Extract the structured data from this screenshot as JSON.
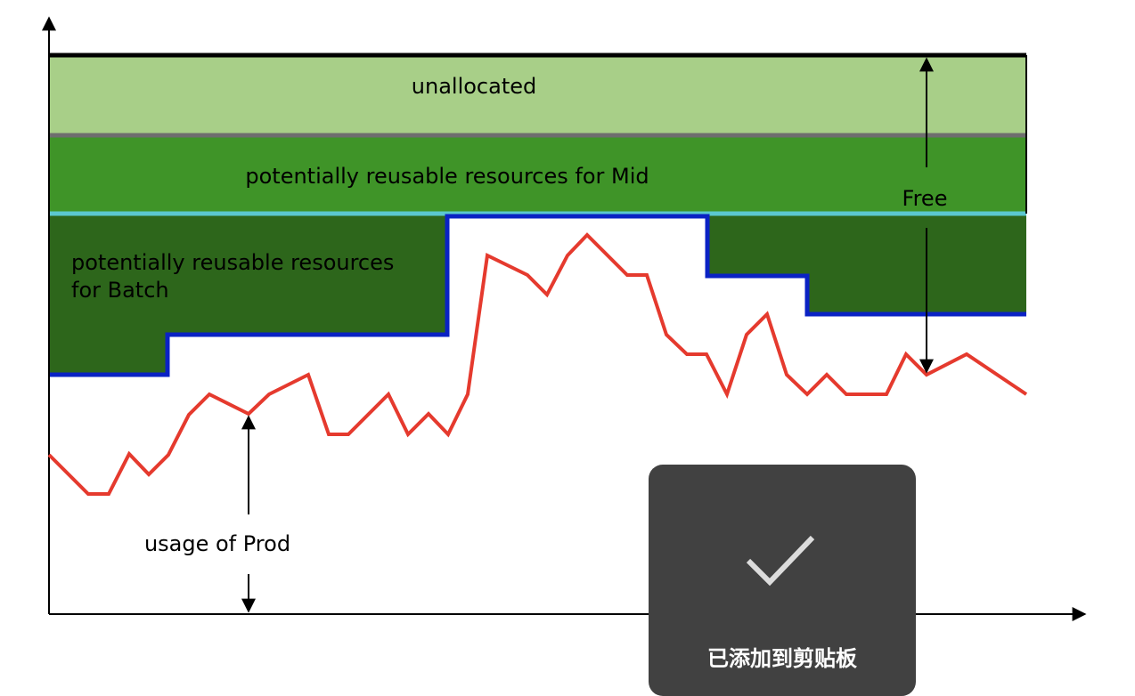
{
  "labels": {
    "unallocated": "unallocated",
    "mid": "potentially reusable resources for Mid",
    "batch_line1": "potentially reusable resources",
    "batch_line2": "for Batch",
    "free": "Free",
    "prod": "usage of Prod"
  },
  "colors": {
    "unallocated": "#a8cf88",
    "mid": "#3f9428",
    "batch": "#2d661b",
    "batch_border": "#0a22c4",
    "mid_border": "#5bc8d0",
    "unallocated_border": "#6e6e6e",
    "top_line": "#000000",
    "usage": "#e53a2e"
  },
  "toast": {
    "icon": "checkmark-icon",
    "text": "已添加到剪贴板"
  }
}
